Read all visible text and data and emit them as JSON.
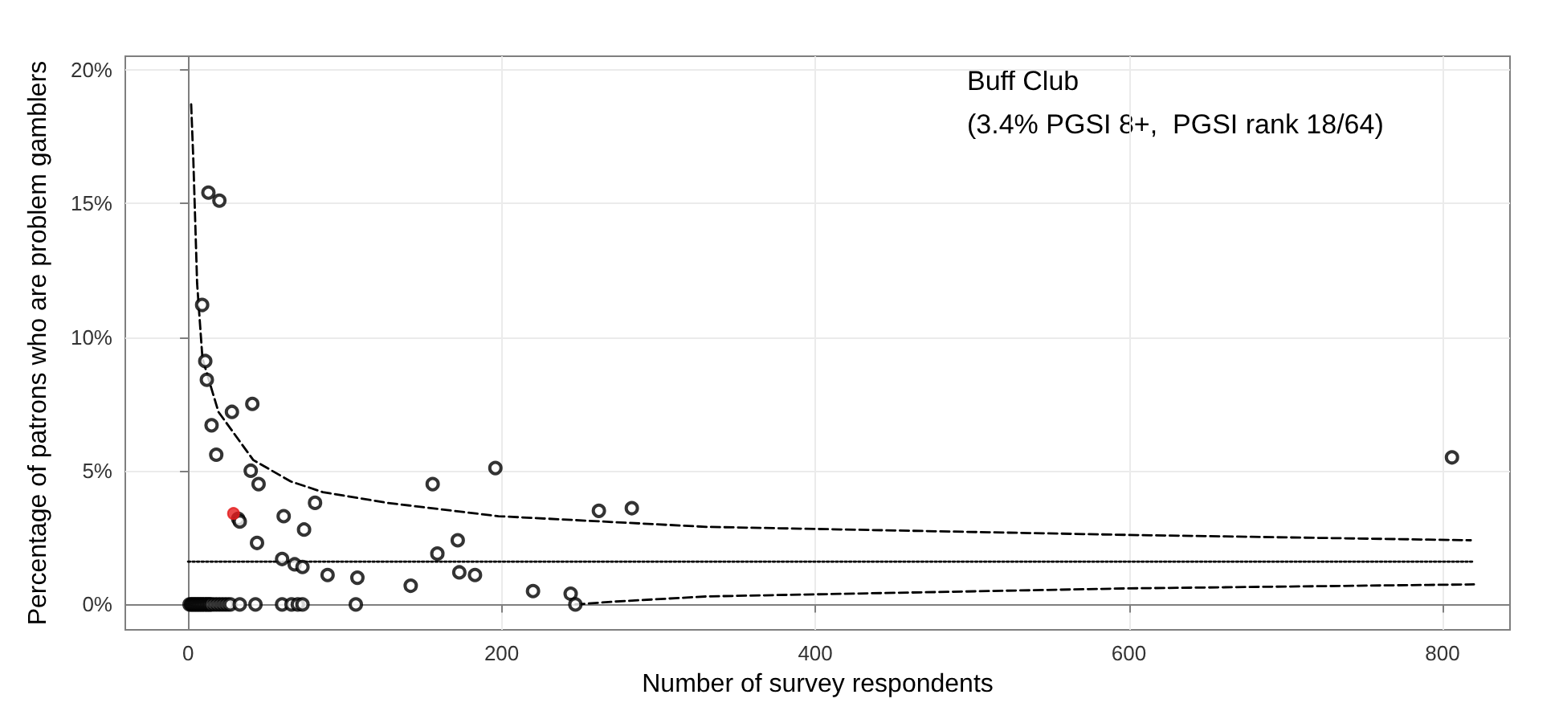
{
  "chart_data": {
    "type": "scatter",
    "xlabel": "Number of survey respondents",
    "ylabel": "Percentage of patrons who are problem gamblers",
    "annotations": [
      "Buff Club",
      "(3.4% PGSI 8+,  PGSI rank 18/64)"
    ],
    "xlim": [
      -40,
      843
    ],
    "xticks": [
      0,
      200,
      400,
      600,
      800
    ],
    "ylim": [
      -0.95,
      20.5
    ],
    "yticks": [
      {
        "value": 0,
        "label": "0%"
      },
      {
        "value": 5,
        "label": "5%"
      },
      {
        "value": 10,
        "label": "10%"
      },
      {
        "value": 15,
        "label": "15%"
      },
      {
        "value": 20,
        "label": "20%"
      }
    ],
    "grid": true,
    "series": [
      {
        "marker": "circle",
        "color": "#000000",
        "x": [
          13,
          20,
          9,
          11,
          12,
          41,
          28,
          15,
          18,
          40,
          45,
          32,
          33,
          61,
          81,
          74,
          44,
          60,
          68,
          73,
          89,
          108,
          142,
          156,
          159,
          172,
          173,
          183,
          196,
          220,
          244,
          262,
          283,
          806,
          1,
          2,
          3,
          4,
          5,
          6,
          7,
          8,
          9,
          10,
          11,
          12,
          13,
          14,
          15,
          17,
          19,
          21,
          23,
          25,
          27,
          33,
          43,
          60,
          66,
          70,
          73,
          107,
          247
        ],
        "values": [
          15.4,
          15.1,
          11.2,
          9.1,
          8.4,
          7.5,
          7.2,
          6.7,
          5.6,
          5.0,
          4.5,
          3.2,
          3.1,
          3.3,
          3.8,
          2.8,
          2.3,
          1.7,
          1.5,
          1.4,
          1.1,
          1.0,
          0.7,
          4.5,
          1.9,
          2.4,
          1.2,
          1.1,
          5.1,
          0.5,
          0.4,
          3.5,
          3.6,
          5.5,
          0,
          0,
          0,
          0,
          0,
          0,
          0,
          0,
          0,
          0,
          0,
          0,
          0,
          0,
          0,
          0,
          0,
          0,
          0,
          0,
          0,
          0,
          0,
          0,
          0,
          0,
          0,
          0,
          0
        ]
      },
      {
        "marker": "circle",
        "color": "#e41a1c",
        "x": [
          29
        ],
        "values": [
          3.4
        ]
      },
      {
        "type": "line",
        "marker": "none",
        "line_style": "dashed",
        "color": "#000000",
        "x": [
          2,
          3.4,
          5.8,
          9.2,
          19.4,
          41.6,
          65.5,
          86,
          127,
          198,
          331,
          599,
          818
        ],
        "values": [
          18.7,
          16.6,
          12.0,
          9.2,
          7.2,
          5.4,
          4.6,
          4.2,
          3.8,
          3.3,
          2.9,
          2.6,
          2.4
        ]
      },
      {
        "type": "line",
        "marker": "none",
        "line_style": "dashed",
        "color": "#000000",
        "x": [
          247,
          270,
          331,
          599,
          820
        ],
        "values": [
          0,
          0.1,
          0.3,
          0.6,
          0.75
        ]
      },
      {
        "type": "line",
        "marker": "none",
        "line_style": "dotted",
        "color": "#000000",
        "x": [
          0,
          820
        ],
        "values": [
          1.6,
          1.6
        ]
      }
    ]
  }
}
